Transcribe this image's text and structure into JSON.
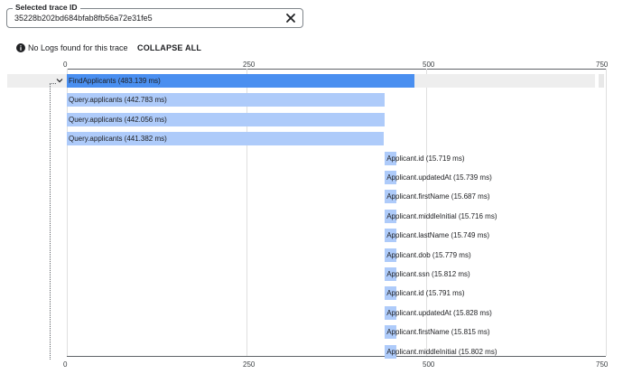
{
  "trace_selector": {
    "label": "Selected trace ID",
    "value": "35228b202bd684bfab8fb56a72e31fe5",
    "clear_icon": "close-icon"
  },
  "toolbar": {
    "info_icon": "info-icon",
    "no_logs_text": "No Logs found for this trace",
    "collapse_all_label": "COLLAPSE ALL"
  },
  "axis": {
    "min": 0,
    "max": 750,
    "ticks": [
      "0",
      "250",
      "500",
      "750"
    ]
  },
  "colors": {
    "root_span": "#4a8ff0",
    "child_span": "#aecbfa",
    "row_highlight": "#eeeeee"
  },
  "spans": [
    {
      "name": "FindApplicants (483.139 ms)",
      "start": 0,
      "duration": 483.139,
      "level": 0
    },
    {
      "name": "Query.applicants (442.783 ms)",
      "start": 0,
      "duration": 442.783,
      "level": 1
    },
    {
      "name": "Query.applicants (442.056 ms)",
      "start": 0,
      "duration": 442.056,
      "level": 1
    },
    {
      "name": "Query.applicants (441.382 ms)",
      "start": 0,
      "duration": 441.382,
      "level": 1
    },
    {
      "name": "Applicant.id (15.719 ms)",
      "start": 442.5,
      "duration": 15.719,
      "level": 2
    },
    {
      "name": "Applicant.updatedAt (15.739 ms)",
      "start": 442.5,
      "duration": 15.739,
      "level": 2
    },
    {
      "name": "Applicant.firstName (15.687 ms)",
      "start": 442.5,
      "duration": 15.687,
      "level": 2
    },
    {
      "name": "Applicant.middleInitial (15.716 ms)",
      "start": 442.5,
      "duration": 15.716,
      "level": 2
    },
    {
      "name": "Applicant.lastName (15.749 ms)",
      "start": 442.5,
      "duration": 15.749,
      "level": 2
    },
    {
      "name": "Applicant.dob (15.779 ms)",
      "start": 442.5,
      "duration": 15.779,
      "level": 2
    },
    {
      "name": "Applicant.ssn (15.812 ms)",
      "start": 442.5,
      "duration": 15.812,
      "level": 2
    },
    {
      "name": "Applicant.id (15.791 ms)",
      "start": 442.5,
      "duration": 15.791,
      "level": 2
    },
    {
      "name": "Applicant.updatedAt (15.828 ms)",
      "start": 442.5,
      "duration": 15.828,
      "level": 2
    },
    {
      "name": "Applicant.firstName (15.815 ms)",
      "start": 442.5,
      "duration": 15.815,
      "level": 2
    },
    {
      "name": "Applicant.middleInitial (15.802 ms)",
      "start": 442.5,
      "duration": 15.802,
      "level": 2
    }
  ]
}
